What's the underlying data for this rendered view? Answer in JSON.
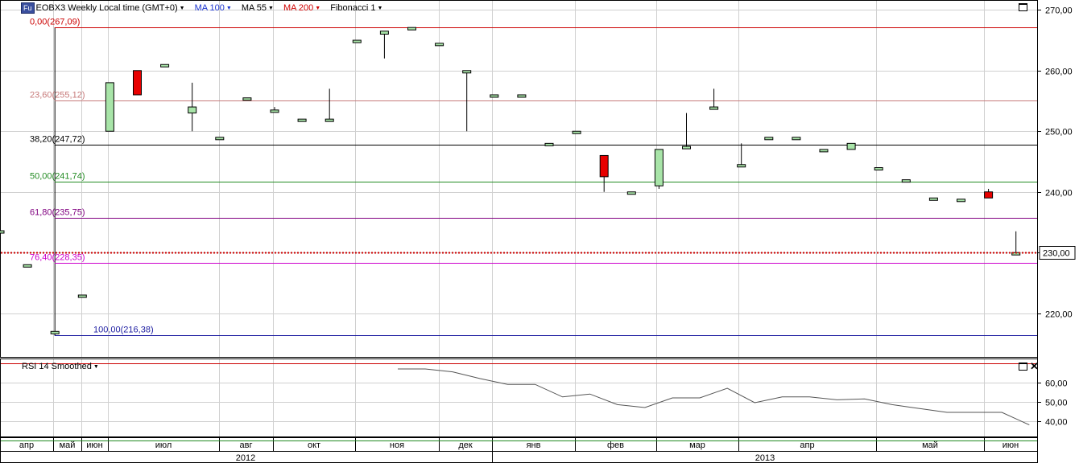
{
  "toolbar": {
    "badge": "Fu",
    "instrument": "EOBX3 Weekly Local time (GMT+0)",
    "ma100": "MA 100",
    "ma55": "MA 55",
    "ma200": "MA 200",
    "fib": "Fibonacci 1"
  },
  "indicator": {
    "title": "RSI 14 Smoothed"
  },
  "colors": {
    "up": "#a8e4a8",
    "down": "#e80000",
    "grid": "#d0d0d0",
    "rsi_line": "#555555"
  },
  "chart_data": [
    {
      "type": "candlestick",
      "title": "EOBX3 Weekly Local time (GMT+0)",
      "ylim": [
        212.8,
        271.5
      ],
      "y_ticks": [
        "270,00",
        "260,00",
        "250,00",
        "240,00",
        "230,00",
        "220,00"
      ],
      "y_tick_values": [
        270,
        260,
        250,
        240,
        230,
        220
      ],
      "last_price": {
        "value": 230.0,
        "label": "230,00"
      },
      "grid": true,
      "fibonacci": [
        {
          "label": "0,00(267,09)",
          "value": 267.09,
          "color": "#cc0000"
        },
        {
          "label": "23,60(255,12)",
          "value": 255.12,
          "color": "#c77a7a"
        },
        {
          "label": "38,20(247,72)",
          "value": 247.72,
          "color": "#000000"
        },
        {
          "label": "50,00(241,74)",
          "value": 241.74,
          "color": "#228b22"
        },
        {
          "label": "61,80(235,75)",
          "value": 235.75,
          "color": "#800080"
        },
        {
          "label": "76,40(228,35)",
          "value": 228.35,
          "color": "#cc00cc"
        },
        {
          "label": "100,00(216,38)",
          "value": 216.38,
          "color": "#1a1aa0"
        }
      ],
      "candles": [
        {
          "o": 233.6,
          "h": 233.6,
          "l": 233.6,
          "c": 233.6
        },
        {
          "o": 228.0,
          "h": 228.0,
          "l": 228.0,
          "c": 228.0
        },
        {
          "o": 217.0,
          "h": 217.0,
          "l": 216.4,
          "c": 217.0
        },
        {
          "o": 223.0,
          "h": 223.0,
          "l": 223.0,
          "c": 223.0
        },
        {
          "o": 250.0,
          "h": 258.0,
          "l": 250.0,
          "c": 258.0
        },
        {
          "o": 260.0,
          "h": 260.0,
          "l": 256.0,
          "c": 256.0
        },
        {
          "o": 261.0,
          "h": 261.0,
          "l": 261.0,
          "c": 261.0
        },
        {
          "o": 253.0,
          "h": 258.0,
          "l": 250.0,
          "c": 254.0
        },
        {
          "o": 249.0,
          "h": 249.0,
          "l": 249.0,
          "c": 249.0
        },
        {
          "o": 255.5,
          "h": 255.5,
          "l": 255.5,
          "c": 255.5
        },
        {
          "o": 253.5,
          "h": 254.0,
          "l": 253.5,
          "c": 253.5
        },
        {
          "o": 252.0,
          "h": 252.0,
          "l": 252.0,
          "c": 252.0
        },
        {
          "o": 252.0,
          "h": 257.0,
          "l": 252.0,
          "c": 252.0
        },
        {
          "o": 265.0,
          "h": 265.0,
          "l": 265.0,
          "c": 265.0
        },
        {
          "o": 266.0,
          "h": 266.5,
          "l": 262.0,
          "c": 266.5
        },
        {
          "o": 267.1,
          "h": 267.1,
          "l": 267.1,
          "c": 267.1
        },
        {
          "o": 264.5,
          "h": 264.5,
          "l": 264.5,
          "c": 264.5
        },
        {
          "o": 260.0,
          "h": 260.0,
          "l": 250.0,
          "c": 260.0
        },
        {
          "o": 256.0,
          "h": 256.0,
          "l": 256.0,
          "c": 256.0
        },
        {
          "o": 256.0,
          "h": 256.0,
          "l": 256.0,
          "c": 256.0
        },
        {
          "o": 248.0,
          "h": 248.0,
          "l": 248.0,
          "c": 248.0
        },
        {
          "o": 250.0,
          "h": 250.0,
          "l": 250.0,
          "c": 250.0
        },
        {
          "o": 246.0,
          "h": 246.0,
          "l": 240.0,
          "c": 242.5
        },
        {
          "o": 240.0,
          "h": 240.0,
          "l": 240.0,
          "c": 240.0
        },
        {
          "o": 241.0,
          "h": 247.0,
          "l": 240.5,
          "c": 247.0
        },
        {
          "o": 247.5,
          "h": 253.0,
          "l": 247.5,
          "c": 247.5
        },
        {
          "o": 254.0,
          "h": 257.0,
          "l": 254.0,
          "c": 254.0
        },
        {
          "o": 244.5,
          "h": 248.0,
          "l": 244.5,
          "c": 244.5
        },
        {
          "o": 249.0,
          "h": 249.0,
          "l": 249.0,
          "c": 249.0
        },
        {
          "o": 249.0,
          "h": 249.0,
          "l": 249.0,
          "c": 249.0
        },
        {
          "o": 247.0,
          "h": 247.0,
          "l": 247.0,
          "c": 247.0
        },
        {
          "o": 247.0,
          "h": 248.0,
          "l": 247.0,
          "c": 248.0
        },
        {
          "o": 244.0,
          "h": 244.0,
          "l": 244.0,
          "c": 244.0
        },
        {
          "o": 242.0,
          "h": 242.0,
          "l": 242.0,
          "c": 242.0
        },
        {
          "o": 239.0,
          "h": 239.0,
          "l": 239.0,
          "c": 239.0
        },
        {
          "o": 238.8,
          "h": 238.8,
          "l": 238.8,
          "c": 238.8
        },
        {
          "o": 240.0,
          "h": 240.5,
          "l": 239.0,
          "c": 239.0
        },
        {
          "o": 230.0,
          "h": 233.5,
          "l": 230.0,
          "c": 230.0
        }
      ]
    },
    {
      "type": "line",
      "title": "RSI 14 Smoothed",
      "ylim": [
        32,
        72
      ],
      "y_ticks": [
        "60,00",
        "50,00",
        "40,00"
      ],
      "y_tick_values": [
        60,
        50,
        40
      ],
      "bands": [
        {
          "value": 70,
          "color": "#cc0000"
        },
        {
          "value": 30,
          "color": "#228b22"
        }
      ],
      "series": [
        {
          "values": [
            null,
            null,
            null,
            null,
            null,
            null,
            null,
            null,
            null,
            null,
            null,
            null,
            null,
            null,
            67,
            67,
            65.5,
            62,
            59,
            59,
            52.5,
            54,
            48.5,
            47,
            52,
            52,
            57,
            49.5,
            52.5,
            52.5,
            51,
            51.5,
            48.5,
            46.5,
            44.5,
            44.5,
            44.5,
            38
          ]
        }
      ]
    }
  ],
  "xaxis": {
    "months": [
      "апр",
      "май",
      "июн",
      "июл",
      "авг",
      "окт",
      "ноя",
      "дек",
      "янв",
      "фев",
      "мар",
      "апр",
      "май",
      "июн"
    ],
    "years": [
      "2012",
      "2013"
    ]
  }
}
